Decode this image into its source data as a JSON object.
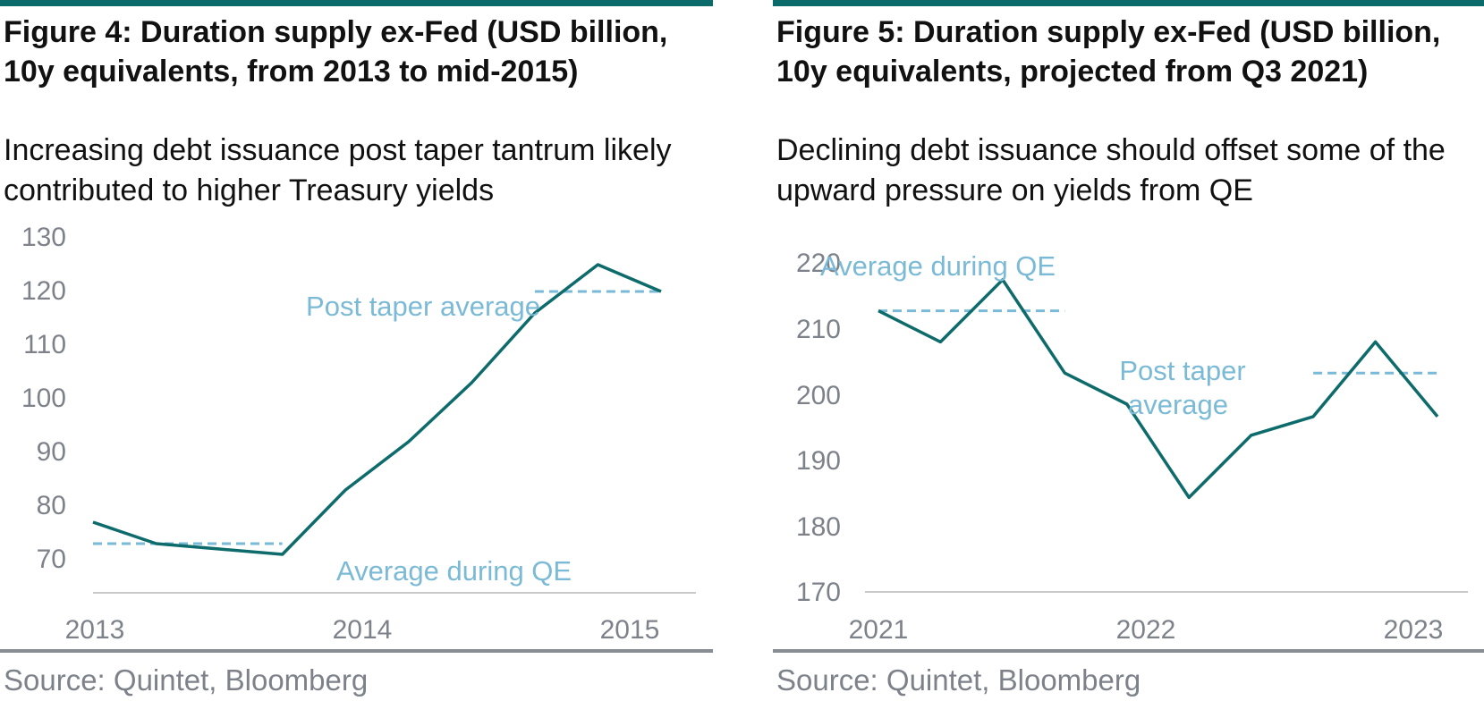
{
  "colors": {
    "accent_rule": "#0b6b6b",
    "series_line": "#0e6b6b",
    "average_line": "#7bbad6",
    "axis_text": "#7d828a",
    "axis_line": "#c9c9c9"
  },
  "chart_data": [
    {
      "type": "line",
      "title": "Figure 4: Duration supply ex-Fed (USD billion, 10y equivalents, from 2013 to mid-2015)",
      "subtitle": "Increasing debt issuance post taper tantrum likely contributed to higher Treasury yields",
      "source": "Source: Quintet, Bloomberg",
      "xlabel": "",
      "ylabel": "",
      "xlim": [
        2013.0,
        2015.25
      ],
      "ylim": [
        70,
        130
      ],
      "yticks": [
        "70",
        "80",
        "90",
        "100",
        "110",
        "120",
        "130"
      ],
      "xticks": [
        {
          "x": 2013.0,
          "label": "2013"
        },
        {
          "x": 2014.0,
          "label": "2014"
        },
        {
          "x": 2015.0,
          "label": "2015"
        }
      ],
      "grid": false,
      "series": [
        {
          "x": [
            2013.0,
            2013.25,
            2013.5,
            2013.75,
            2014.0,
            2014.25,
            2014.5,
            2014.75,
            2015.0,
            2015.25
          ],
          "values": [
            77,
            73,
            72,
            71,
            83,
            92,
            103,
            116,
            125,
            120
          ]
        }
      ],
      "reference_lines": [
        {
          "label": "Post taper average",
          "value": 120,
          "x_range": [
            2014.75,
            2015.25
          ]
        },
        {
          "label": "Average during QE",
          "value": 73,
          "x_range": [
            2013.0,
            2013.75
          ]
        }
      ],
      "annotations": [
        "Post taper average",
        "Average during QE"
      ]
    },
    {
      "type": "line",
      "title": "Figure 5: Duration supply ex-Fed (USD billion, 10y equivalents, projected from Q3 2021)",
      "subtitle": "Declining debt issuance should offset some of the upward pressure on yields from QE",
      "source": "Source: Quintet, Bloomberg",
      "xlabel": "",
      "ylabel": "",
      "xlim": [
        2021.0,
        2023.25
      ],
      "ylim": [
        170,
        220
      ],
      "yticks": [
        "170",
        "180",
        "190",
        "200",
        "210",
        "220"
      ],
      "xticks": [
        {
          "x": 2021.0,
          "label": "2021"
        },
        {
          "x": 2022.0,
          "label": "2022"
        },
        {
          "x": 2023.0,
          "label": "2023"
        }
      ],
      "grid": false,
      "series": [
        {
          "x": [
            2021.0,
            2021.25,
            2021.5,
            2021.75,
            2022.0,
            2022.25,
            2022.5,
            2022.75,
            2023.0,
            2023.25
          ],
          "values": [
            210,
            205,
            215,
            200,
            195,
            180,
            190,
            193,
            205,
            193
          ]
        }
      ],
      "reference_lines": [
        {
          "label": "Average during QE",
          "value": 210,
          "x_range": [
            2021.0,
            2021.75
          ]
        },
        {
          "label": "Post taper average",
          "value": 200,
          "x_range": [
            2022.75,
            2023.25
          ]
        }
      ],
      "annotations": [
        "Average during QE",
        "Post taper",
        "average"
      ]
    }
  ]
}
